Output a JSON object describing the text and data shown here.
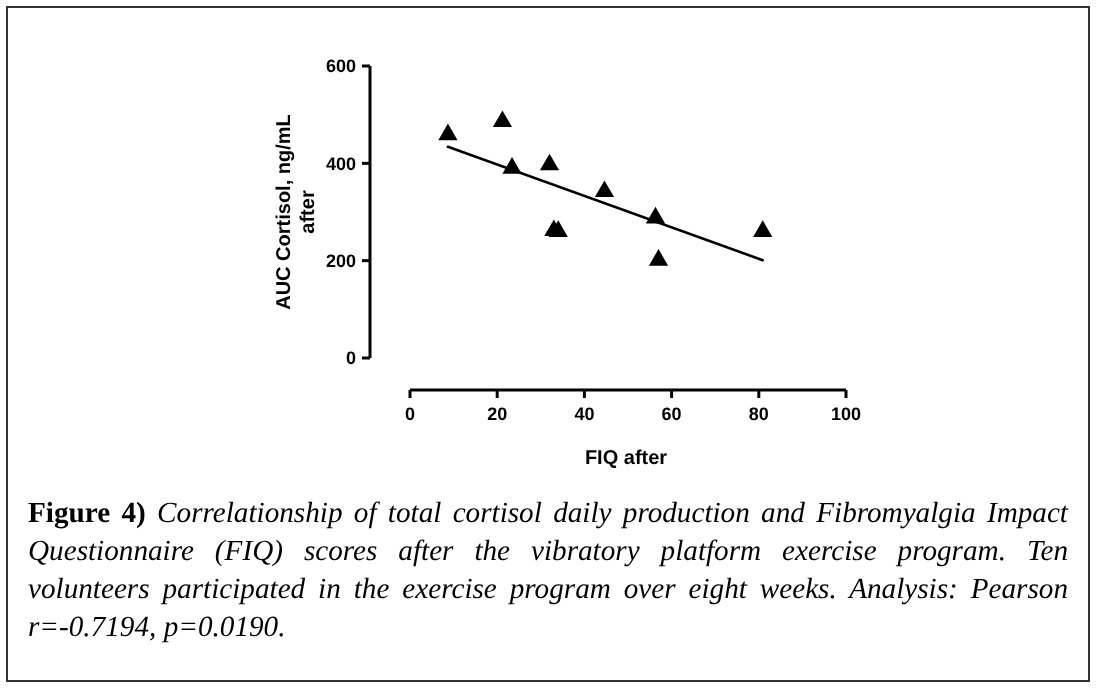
{
  "chart_data": {
    "type": "scatter",
    "title": "Figure 4)",
    "xlabel": "FIQ after",
    "ylabel": "AUC Cortisol, ng/mL after",
    "annotations": [
      "Correlationship of total cortisol daily production and Fibromyalgia Impact Questionnaire (FIQ) scores after the vibratory platform exercise program. Ten volunteers participated in the exercise program over eight weeks. Analysis: Pearson r=-0.7194, p=0.0190."
    ],
    "xlim": [
      0,
      100
    ],
    "xticks": [
      0,
      20,
      40,
      60,
      80,
      100
    ],
    "ylim": [
      0,
      600
    ],
    "yticks": [
      0,
      200,
      400,
      600
    ],
    "grid": false,
    "series": [
      {
        "marker": "triangle",
        "color": "#000000",
        "x": [
          8.7,
          21.2,
          23.4,
          32,
          33,
          34,
          44.6,
          56.3,
          57,
          80.9
        ],
        "values": [
          459,
          486,
          390,
          397,
          262,
          260,
          342,
          288,
          201,
          260
        ]
      },
      {
        "type": "line",
        "color": "#000000",
        "x": [
          8.7,
          80.9
        ],
        "values": [
          434,
          201
        ]
      }
    ]
  }
}
